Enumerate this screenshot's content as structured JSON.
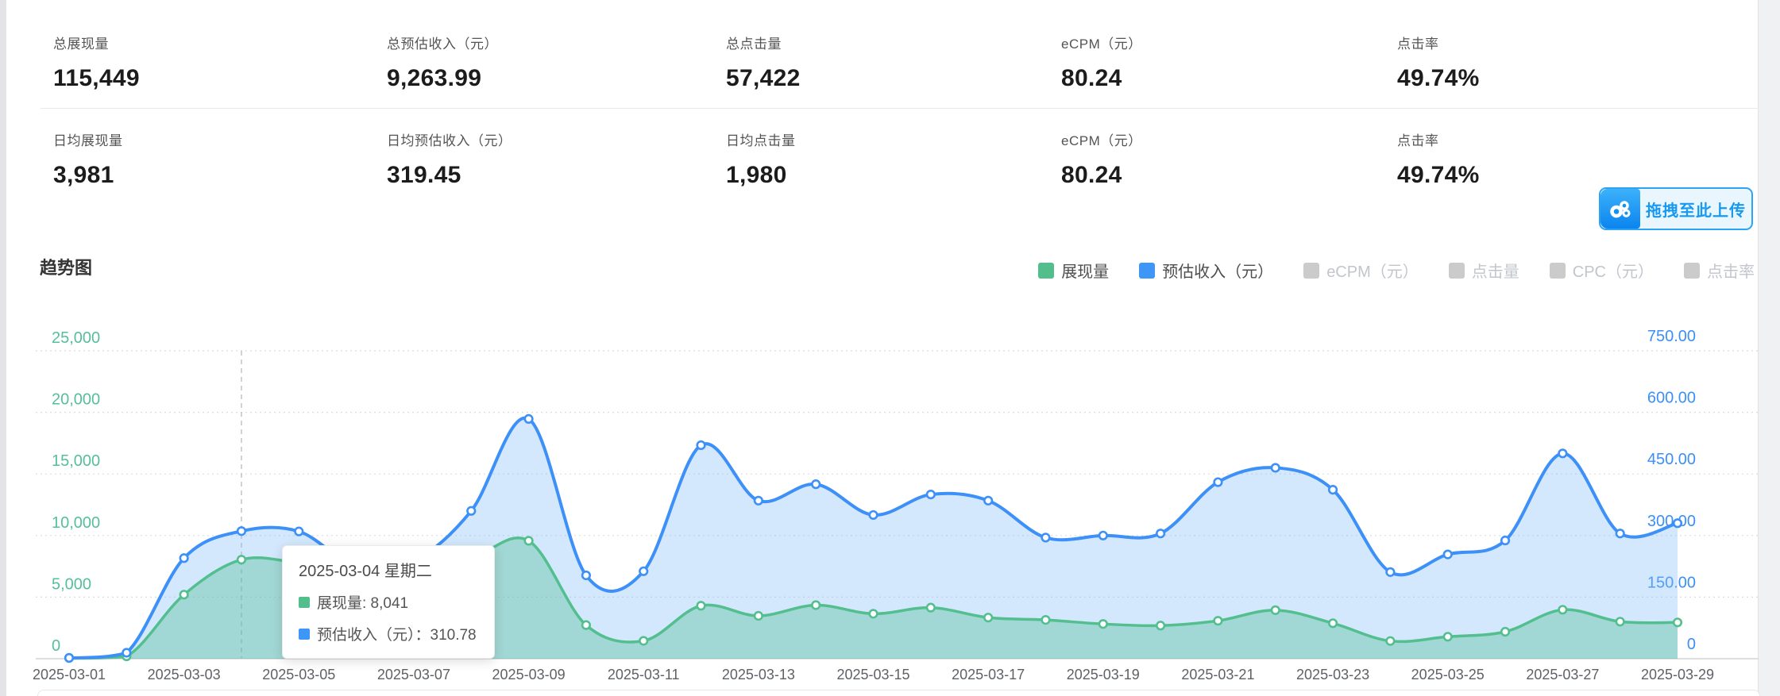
{
  "stats": {
    "rows": [
      [
        {
          "label": "总展现量",
          "value": "115,449"
        },
        {
          "label": "总预估收入（元）",
          "value": "9,263.99"
        },
        {
          "label": "总点击量",
          "value": "57,422"
        },
        {
          "label": "eCPM（元）",
          "value": "80.24"
        },
        {
          "label": "点击率",
          "value": "49.74%"
        }
      ],
      [
        {
          "label": "日均展现量",
          "value": "3,981"
        },
        {
          "label": "日均预估收入（元）",
          "value": "319.45"
        },
        {
          "label": "日均点击量",
          "value": "1,980"
        },
        {
          "label": "eCPM（元）",
          "value": "80.24"
        },
        {
          "label": "点击率",
          "value": "49.74%"
        }
      ]
    ]
  },
  "upload_button": {
    "label": "拖拽至此上传",
    "accent": "#1799f1"
  },
  "trend": {
    "title": "趋势图",
    "legend": [
      {
        "label": "展现量",
        "color": "#52be8c",
        "active": true
      },
      {
        "label": "预估收入（元）",
        "color": "#3e97f7",
        "active": true
      },
      {
        "label": "eCPM（元）",
        "color": "#cbcbcb",
        "active": false
      },
      {
        "label": "点击量",
        "color": "#cbcbcb",
        "active": false
      },
      {
        "label": "CPC（元）",
        "color": "#cbcbcb",
        "active": false
      },
      {
        "label": "点击率",
        "color": "#cbcbcb",
        "active": false
      }
    ],
    "tooltip": {
      "title": "2025-03-04 星期二",
      "rows": [
        {
          "color": "#52be8c",
          "text": "展现量: 8,041"
        },
        {
          "color": "#3e97f7",
          "text": "预估收入（元）：310.78"
        }
      ]
    }
  },
  "chart_data": {
    "type": "line",
    "x": [
      "2025-03-01",
      "2025-03-02",
      "2025-03-03",
      "2025-03-04",
      "2025-03-05",
      "2025-03-06",
      "2025-03-07",
      "2025-03-08",
      "2025-03-09",
      "2025-03-10",
      "2025-03-11",
      "2025-03-12",
      "2025-03-13",
      "2025-03-14",
      "2025-03-15",
      "2025-03-16",
      "2025-03-17",
      "2025-03-18",
      "2025-03-19",
      "2025-03-20",
      "2025-03-21",
      "2025-03-22",
      "2025-03-23",
      "2025-03-24",
      "2025-03-25",
      "2025-03-26",
      "2025-03-27",
      "2025-03-28",
      "2025-03-29"
    ],
    "x_axis_labels": [
      "2025-03-01",
      "2025-03-03",
      "2025-03-05",
      "2025-03-07",
      "2025-03-09",
      "2025-03-11",
      "2025-03-13",
      "2025-03-15",
      "2025-03-17",
      "2025-03-19",
      "2025-03-21",
      "2025-03-23",
      "2025-03-25",
      "2025-03-27",
      "2025-03-29"
    ],
    "series": [
      {
        "name": "展现量",
        "axis": "left",
        "color": "#53bf8f",
        "fill": "rgba(88,191,150,0.40)",
        "values": [
          35,
          190,
          5200,
          8041,
          7800,
          7350,
          7711,
          8200,
          9575,
          2730,
          1450,
          4300,
          3480,
          4350,
          3650,
          4147,
          3340,
          3150,
          2820,
          2690,
          3080,
          3940,
          2880,
          1437,
          1785,
          2190,
          3975,
          3009,
          2944
        ]
      },
      {
        "name": "预估收入（元）",
        "axis": "right",
        "color": "#3c90f7",
        "fill": "rgba(130,190,249,0.35)",
        "values": [
          1.2,
          14.5,
          245,
          310.78,
          310,
          225,
          238,
          360,
          584,
          203,
          213,
          520,
          385,
          425,
          350,
          400,
          385,
          295,
          300,
          305,
          430,
          465,
          411.51,
          211,
          254,
          288,
          500,
          305,
          330
        ]
      }
    ],
    "left_axis": {
      "min": 0,
      "max": 25000,
      "ticks": [
        "0",
        "5,000",
        "10,000",
        "15,000",
        "20,000",
        "25,000"
      ],
      "color": "#56bf9a"
    },
    "right_axis": {
      "min": 0,
      "max": 750,
      "ticks": [
        "0",
        "150.00",
        "300.00",
        "450.00",
        "600.00",
        "750.00"
      ],
      "color": "#3b8ff6"
    },
    "grid": {
      "dotted": true,
      "color": "#dcdcdc",
      "axis_line_color": "#d4d4d4"
    },
    "highlight": {
      "date": "2025-03-04",
      "index": 3
    },
    "legend_position": "top-right",
    "title": "趋势图"
  }
}
